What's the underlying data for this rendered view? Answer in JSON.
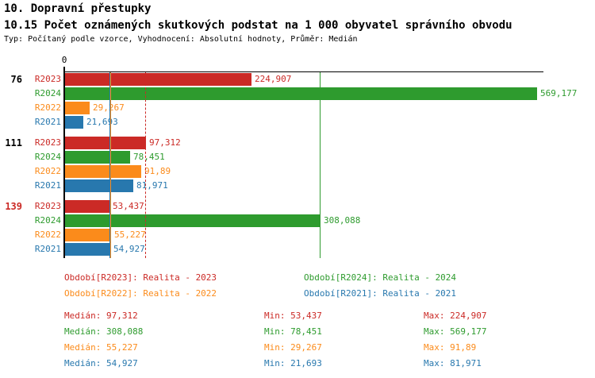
{
  "header": {
    "title": "10. Dopravní přestupky",
    "subtitle": "10.15 Počet oznámených skutkových podstat na 1 000 obyvatel správního obvodu",
    "meta": "Typ: Počítaný podle vzorce, Vyhodnocení: Absolutní hodnoty, Průměr: Medián"
  },
  "series_colors": {
    "R2023": "#cb2a26",
    "R2024": "#2e9b2e",
    "R2022": "#fb8b1b",
    "R2021": "#2878ae"
  },
  "chart_data": {
    "type": "bar",
    "orientation": "horizontal",
    "x_axis": {
      "zero_label": "0",
      "min": 0,
      "max": 577,
      "grid": false
    },
    "series_order": [
      "R2023",
      "R2024",
      "R2022",
      "R2021"
    ],
    "groups": [
      {
        "label": "76",
        "label_color": "#000000",
        "bars": [
          {
            "series": "R2023",
            "value": 224.907,
            "value_label": "224,907"
          },
          {
            "series": "R2024",
            "value": 569.177,
            "value_label": "569,177"
          },
          {
            "series": "R2022",
            "value": 29.267,
            "value_label": "29,267"
          },
          {
            "series": "R2021",
            "value": 21.693,
            "value_label": "21,693"
          }
        ]
      },
      {
        "label": "111",
        "label_color": "#000000",
        "bars": [
          {
            "series": "R2023",
            "value": 97.312,
            "value_label": "97,312"
          },
          {
            "series": "R2024",
            "value": 78.451,
            "value_label": "78,451"
          },
          {
            "series": "R2022",
            "value": 91.89,
            "value_label": "91,89"
          },
          {
            "series": "R2021",
            "value": 81.971,
            "value_label": "81,971"
          }
        ]
      },
      {
        "label": "139",
        "label_color": "#cb2a26",
        "bars": [
          {
            "series": "R2023",
            "value": 53.437,
            "value_label": "53,437"
          },
          {
            "series": "R2024",
            "value": 308.088,
            "value_label": "308,088"
          },
          {
            "series": "R2022",
            "value": 55.227,
            "value_label": "55,227"
          },
          {
            "series": "R2021",
            "value": 54.927,
            "value_label": "54,927"
          }
        ]
      }
    ],
    "median_lines": [
      {
        "series": "R2021",
        "value": 54.927,
        "style": "solid"
      },
      {
        "series": "R2022",
        "value": 55.227,
        "style": "solid"
      },
      {
        "series": "R2023",
        "value": 97.312,
        "style": "dashed"
      },
      {
        "series": "R2024",
        "value": 308.088,
        "style": "solid"
      }
    ]
  },
  "legend": {
    "items": [
      {
        "series": "R2023",
        "text": "Období[R2023]: Realita - 2023"
      },
      {
        "series": "R2024",
        "text": "Období[R2024]: Realita - 2024"
      },
      {
        "series": "R2022",
        "text": "Období[R2022]: Realita - 2022"
      },
      {
        "series": "R2021",
        "text": "Období[R2021]: Realita - 2021"
      }
    ]
  },
  "stats": {
    "rows": [
      {
        "series": "R2023",
        "median": "Medián: 97,312",
        "min": "Min: 53,437",
        "max": "Max: 224,907"
      },
      {
        "series": "R2024",
        "median": "Medián: 308,088",
        "min": "Min: 78,451",
        "max": "Max: 569,177"
      },
      {
        "series": "R2022",
        "median": "Medián: 55,227",
        "min": "Min: 29,267",
        "max": "Max: 91,89"
      },
      {
        "series": "R2021",
        "median": "Medián: 54,927",
        "min": "Min: 21,693",
        "max": "Max: 81,971"
      }
    ]
  }
}
